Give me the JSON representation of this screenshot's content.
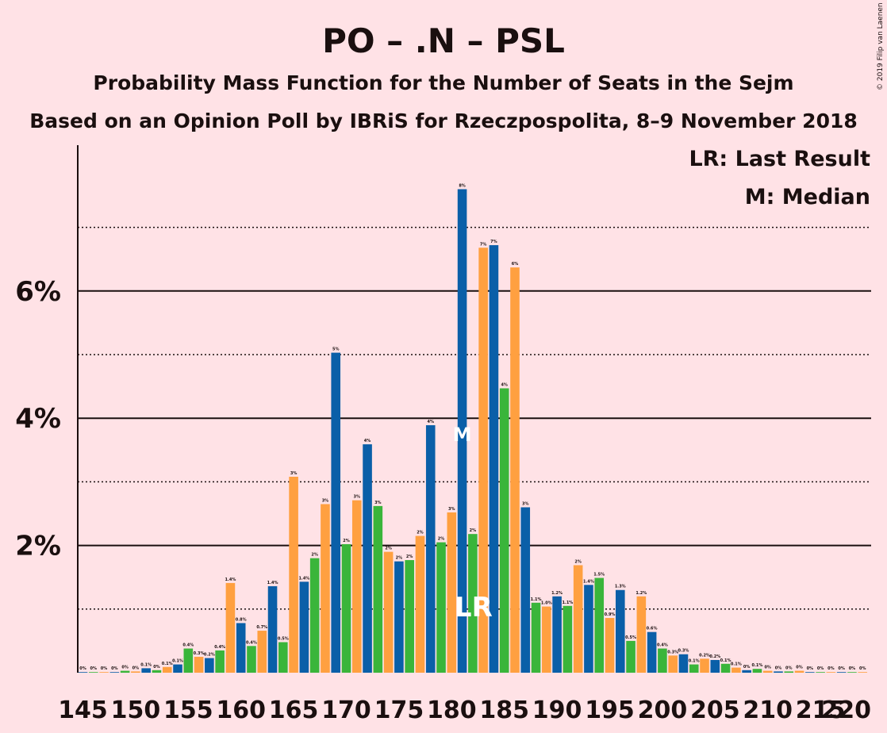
{
  "title": "PO – .N – PSL",
  "subtitle": "Probability Mass Function for the Number of Seats in the Sejm",
  "subtitle2": "Based on an Opinion Poll by IBRiS for Rzeczpospolita, 8–9 November 2018",
  "legend_lr": "LR: Last Result",
  "legend_m": "M: Median",
  "copyright": "© 2019 Filip van Laenen",
  "marker_lr": "LR",
  "marker_m": "M",
  "colors": {
    "background": "#ffe2e6",
    "blue": "#0a5fa8",
    "green": "#3ab53a",
    "orange": "#ffa040"
  },
  "chart_data": {
    "type": "bar",
    "title": "PO – .N – PSL",
    "ylabel": "",
    "xlabel": "",
    "ylim": [
      0,
      8.3
    ],
    "ytick_values": [
      2,
      4,
      6
    ],
    "ytick_labels": [
      "2%",
      "4%",
      "6%"
    ],
    "dotted_gridlines": [
      1,
      3,
      5,
      7
    ],
    "xtick_labels": [
      "145",
      "150",
      "155",
      "160",
      "165",
      "170",
      "175",
      "180",
      "185",
      "190",
      "195",
      "200",
      "205",
      "210",
      "215",
      "220"
    ],
    "last_result_seat": 182,
    "median_seat": 181,
    "seats": [
      145,
      146,
      147,
      148,
      149,
      150,
      151,
      152,
      153,
      154,
      155,
      156,
      157,
      158,
      159,
      160,
      161,
      162,
      163,
      164,
      165,
      166,
      167,
      168,
      169,
      170,
      171,
      172,
      173,
      174,
      175,
      176,
      177,
      178,
      179,
      180,
      181,
      182,
      183,
      184,
      185,
      186,
      187,
      188,
      189,
      190,
      191,
      192,
      193,
      194,
      195,
      196,
      197,
      198,
      199,
      200,
      201,
      202,
      203,
      204,
      205,
      206,
      207,
      208,
      209,
      210,
      211,
      212,
      213,
      214,
      215,
      216,
      217,
      218,
      219
    ],
    "values": [
      0.01,
      0.01,
      0.01,
      0.01,
      0.03,
      0.02,
      0.07,
      0.04,
      0.09,
      0.13,
      0.38,
      0.25,
      0.23,
      0.35,
      1.41,
      0.78,
      0.42,
      0.66,
      1.36,
      0.48,
      3.08,
      1.43,
      1.8,
      2.65,
      5.03,
      2.02,
      2.71,
      3.59,
      2.62,
      1.9,
      1.75,
      1.77,
      2.15,
      3.89,
      2.05,
      2.52,
      7.6,
      2.18,
      6.68,
      6.72,
      4.47,
      6.37,
      2.6,
      1.1,
      1.04,
      1.2,
      1.05,
      1.69,
      1.38,
      1.49,
      0.86,
      1.3,
      0.5,
      1.2,
      0.64,
      0.38,
      0.27,
      0.29,
      0.13,
      0.22,
      0.2,
      0.14,
      0.08,
      0.04,
      0.06,
      0.03,
      0.02,
      0.02,
      0.03,
      0.01,
      0.01,
      0.01,
      0.01,
      0.01,
      0.01
    ],
    "data_labels": [
      "0%",
      "0%",
      "0%",
      "0%",
      "0%",
      "0%",
      "0.1%",
      "0%",
      "0.1%",
      "0.1%",
      "0.4%",
      "0.3%",
      "0.2%",
      "0.4%",
      "1.4%",
      "0.8%",
      "0.4%",
      "0.7%",
      "1.4%",
      "0.5%",
      "3%",
      "1.4%",
      "2%",
      "3%",
      "5%",
      "2%",
      "3%",
      "4%",
      "3%",
      "2%",
      "2%",
      "2%",
      "2%",
      "4%",
      "2%",
      "3%",
      "8%",
      "2%",
      "7%",
      "7%",
      "4%",
      "6%",
      "3%",
      "1.1%",
      "1.0%",
      "1.2%",
      "1.1%",
      "2%",
      "1.4%",
      "1.5%",
      "0.9%",
      "1.3%",
      "0.5%",
      "1.2%",
      "0.6%",
      "0.4%",
      "0.3%",
      "0.3%",
      "0.1%",
      "0.2%",
      "0.2%",
      "0.1%",
      "0.1%",
      "0%",
      "0.1%",
      "0%",
      "0%",
      "0%",
      "0%",
      "0%",
      "0%",
      "0%",
      "0%",
      "0%",
      "0%"
    ]
  }
}
